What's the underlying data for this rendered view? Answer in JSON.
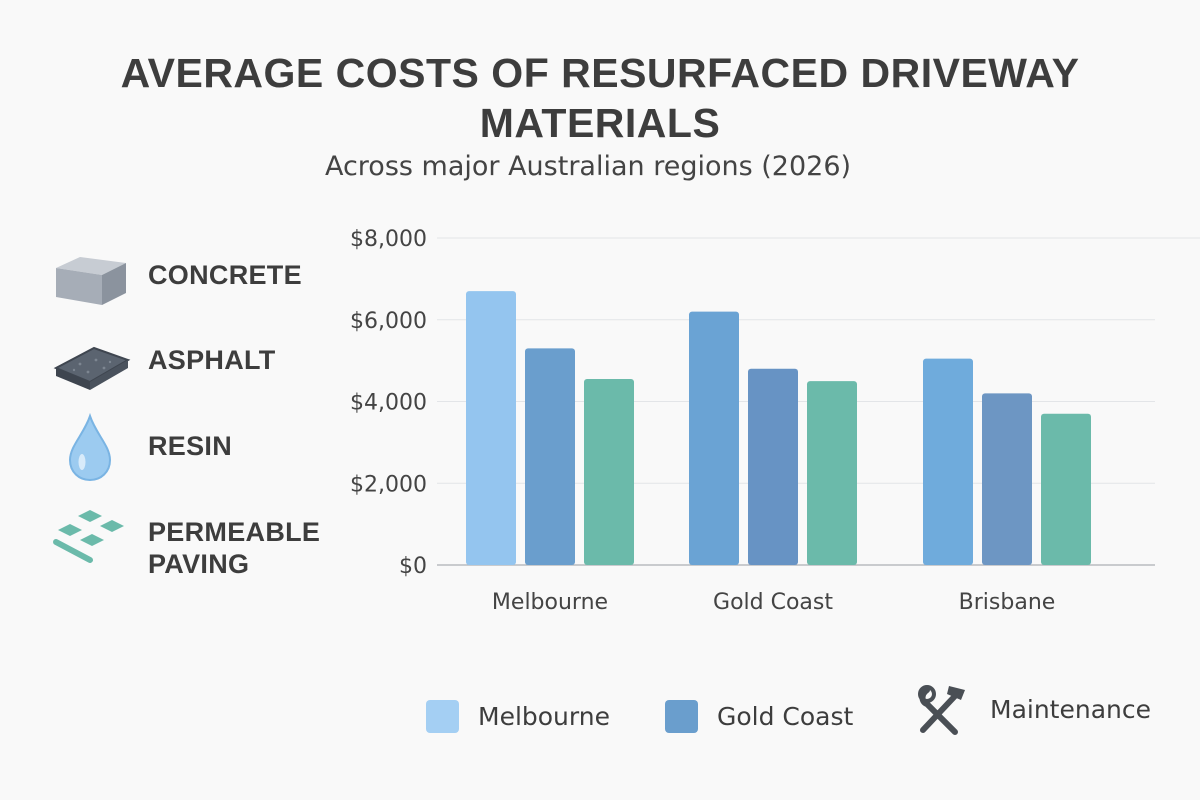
{
  "chart_data": {
    "type": "bar",
    "title": "AVERAGE COSTS OF RESURFACED DRIVEWAY MATERIALS",
    "subtitle": "Across major Australian regions (2026)",
    "categories": [
      "Melbourne",
      "Gold Coast",
      "Brisbane"
    ],
    "series": [
      {
        "values": [
          6700,
          6200,
          5050
        ],
        "colors": [
          "#94c5ef",
          "#6aa3d4",
          "#6fabdc"
        ]
      },
      {
        "values": [
          5300,
          4800,
          4200
        ],
        "colors": [
          "#6a9ecd",
          "#6793c4",
          "#6d96c3"
        ]
      },
      {
        "values": [
          4550,
          4500,
          3700
        ],
        "colors": [
          "#6bbaaa",
          "#6bbaaa",
          "#6bbaaa"
        ]
      }
    ],
    "yticks": [
      "$0",
      "$2,000",
      "$4,000",
      "$6,000",
      "$8,000"
    ],
    "ylim": [
      0,
      8000
    ],
    "grid": true,
    "legend": [
      {
        "label": "Melbourne",
        "color": "#a4cff3"
      },
      {
        "label": "Gold Coast",
        "color": "#6a9ecd"
      },
      {
        "label": "Maintenance",
        "icon": "wrench-hammer-icon"
      }
    ]
  },
  "materials": [
    {
      "label": "CONCRETE",
      "icon": "concrete-block-icon"
    },
    {
      "label": "ASPHALT",
      "icon": "asphalt-slab-icon"
    },
    {
      "label": "RESIN",
      "icon": "resin-drop-icon"
    },
    {
      "label": "PERMEABLE\nPAVING",
      "icon": "permeable-paving-icon"
    }
  ]
}
